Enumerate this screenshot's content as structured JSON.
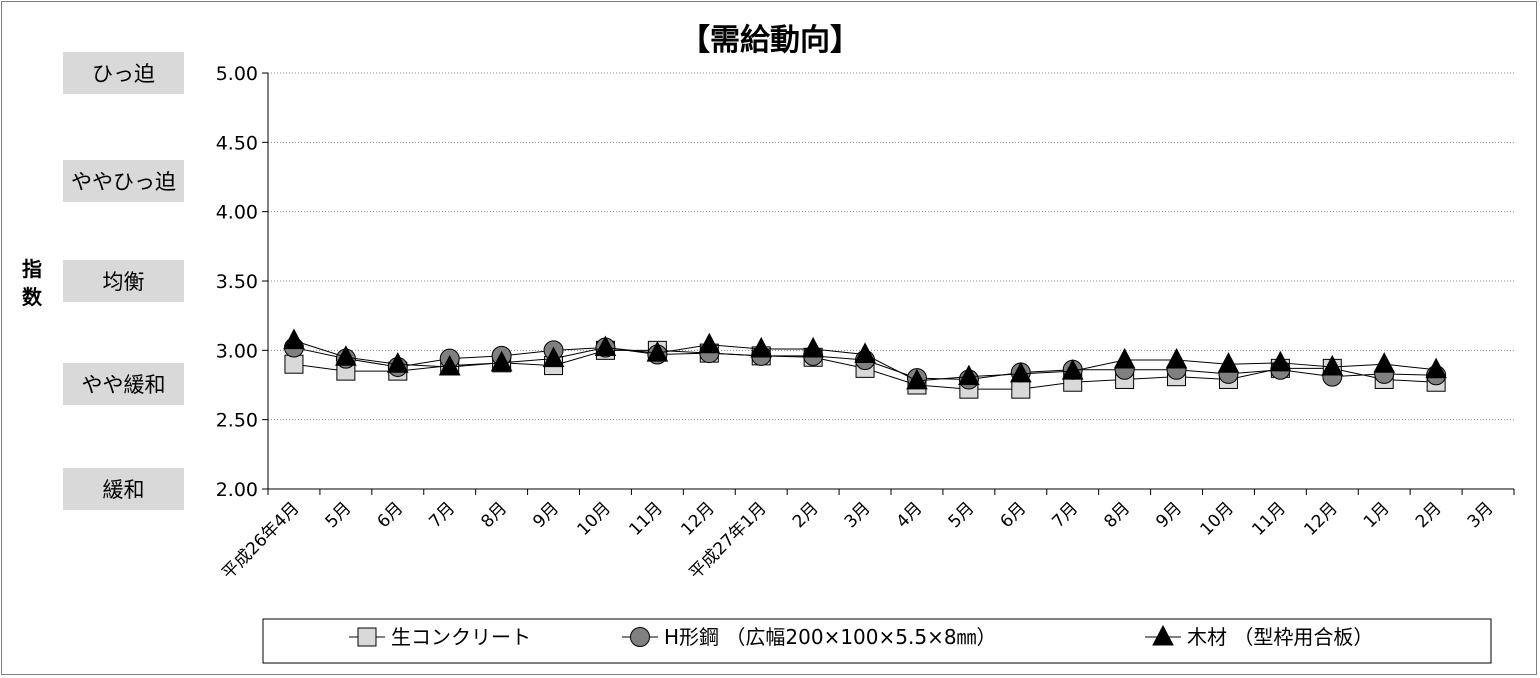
{
  "chart_data": {
    "type": "line",
    "title": "【需給動向】",
    "ylabel": "指数",
    "ylim": [
      2.0,
      5.0
    ],
    "yticks": [
      "5.00",
      "4.50",
      "4.00",
      "3.50",
      "3.00",
      "2.50",
      "2.00"
    ],
    "y_category_labels": [
      {
        "label": "ひっ迫",
        "value": 5.0
      },
      {
        "label": "ややひっ迫",
        "value": 4.25
      },
      {
        "label": "均衡",
        "value": 3.5
      },
      {
        "label": "やや緩和",
        "value": 2.75
      },
      {
        "label": "緩和",
        "value": 2.0
      }
    ],
    "grid": true,
    "legend_position": "bottom",
    "categories": [
      "平成26年4月",
      "5月",
      "6月",
      "7月",
      "8月",
      "9月",
      "10月",
      "11月",
      "12月",
      "平成27年1月",
      "2月",
      "3月",
      "4月",
      "5月",
      "6月",
      "7月",
      "8月",
      "9月",
      "10月",
      "11月",
      "12月",
      "1月",
      "2月",
      "3月"
    ],
    "series": [
      {
        "name": "生コンクリート",
        "marker": "square",
        "color": "#d9d9d9",
        "values": [
          2.9,
          2.85,
          2.85,
          2.89,
          2.91,
          2.89,
          3.0,
          3.0,
          2.98,
          2.96,
          2.95,
          2.87,
          2.75,
          2.72,
          2.72,
          2.77,
          2.79,
          2.81,
          2.79,
          2.87,
          2.87,
          2.79,
          2.77,
          null
        ]
      },
      {
        "name": "H形鋼 （広幅200×100×5.5×8㎜）",
        "marker": "circle",
        "color": "#808080",
        "values": [
          3.02,
          2.94,
          2.88,
          2.94,
          2.96,
          3.0,
          3.02,
          2.97,
          2.98,
          2.96,
          2.96,
          2.93,
          2.8,
          2.79,
          2.84,
          2.86,
          2.86,
          2.86,
          2.83,
          2.86,
          2.81,
          2.83,
          2.82,
          null
        ]
      },
      {
        "name": "木材 （型枠用合板）",
        "marker": "triangle",
        "color": "#000000",
        "values": [
          3.07,
          2.95,
          2.9,
          2.88,
          2.91,
          2.94,
          3.02,
          2.98,
          3.04,
          3.01,
          3.01,
          2.97,
          2.78,
          2.81,
          2.83,
          2.85,
          2.93,
          2.93,
          2.9,
          2.91,
          2.88,
          2.9,
          2.86,
          null
        ]
      }
    ]
  }
}
